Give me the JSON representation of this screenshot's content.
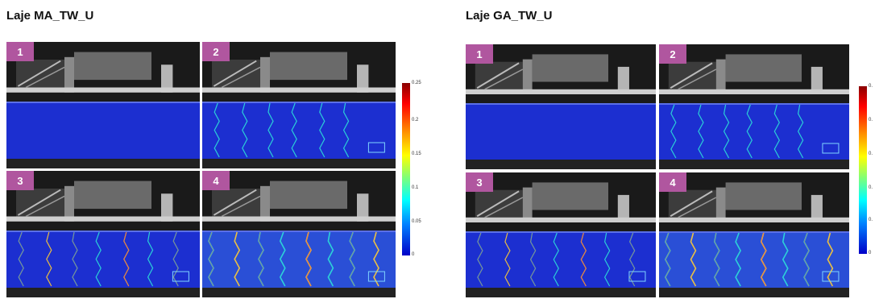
{
  "groups": [
    {
      "title": "Laje MA_TW_U",
      "badges": [
        "1",
        "2",
        "3",
        "4"
      ],
      "colorbar_ticks": [
        "0.25",
        "0.2",
        "0.15",
        "0.1",
        "0.05",
        "0"
      ]
    },
    {
      "title": "Laje GA_TW_U",
      "badges": [
        "1",
        "2",
        "3",
        "4"
      ],
      "colorbar_ticks": [
        "0.",
        "0.",
        "0.",
        "0.",
        "0.",
        "0"
      ]
    }
  ],
  "colors": {
    "badge": "#b0569f",
    "slab": "#1c2fd0",
    "crack": "#2ce0d8"
  }
}
